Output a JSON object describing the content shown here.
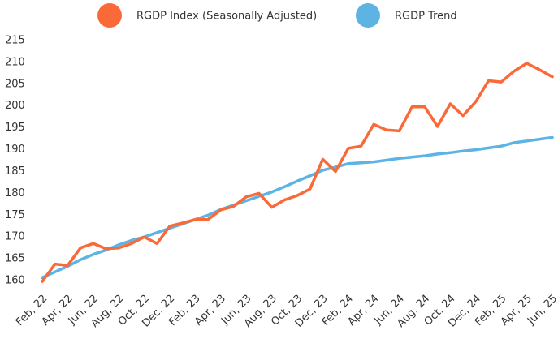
{
  "chart_data": {
    "type": "line",
    "categories": [
      "Feb, 22",
      null,
      "Apr, 22",
      null,
      "Jun, 22",
      null,
      "Aug, 22",
      null,
      "Oct, 22",
      null,
      "Dec, 22",
      null,
      "Feb, 23",
      null,
      "Apr, 23",
      null,
      "Jun, 23",
      null,
      "Aug, 23",
      null,
      "Oct, 23",
      null,
      "Dec, 23",
      null,
      "Feb, 24",
      null,
      "Apr, 24",
      null,
      "Jun, 24",
      null,
      "Aug, 24",
      null,
      "Oct, 24",
      null,
      "Dec, 24",
      null,
      "Feb, 25",
      null,
      "Apr, 25",
      null,
      "Jun, 25"
    ],
    "series": [
      {
        "name": "RGDP Index (Seasonally Adjusted)",
        "color": "#fa6a38",
        "values": [
          159.8,
          163.8,
          163.5,
          167.5,
          168.5,
          167.3,
          167.5,
          168.5,
          170,
          168.5,
          172.5,
          173.2,
          174,
          174,
          176.2,
          177,
          179.2,
          180,
          176.8,
          178.5,
          179.5,
          181,
          187.8,
          185,
          190.3,
          190.8,
          195.8,
          194.5,
          194.3,
          199.8,
          199.8,
          195.3,
          200.5,
          197.8,
          201,
          205.8,
          205.5,
          208,
          209.8,
          208.3,
          206.7
        ]
      },
      {
        "name": "RGDP Trend",
        "color": "#5cb3e4",
        "values": [
          160.7,
          162,
          163.3,
          164.8,
          166,
          167,
          168.2,
          169.2,
          170,
          171,
          172,
          173,
          174,
          175,
          176.3,
          177.3,
          178.3,
          179.3,
          180.3,
          181.5,
          182.8,
          184,
          185.3,
          186,
          186.8,
          187,
          187.2,
          187.6,
          188,
          188.3,
          188.6,
          189,
          189.3,
          189.7,
          190,
          190.4,
          190.8,
          191.6,
          192,
          192.4,
          192.8
        ]
      }
    ],
    "ylim": [
      158,
      216
    ],
    "yticks": [
      160,
      165,
      170,
      175,
      180,
      185,
      190,
      195,
      200,
      205,
      210,
      215
    ],
    "grid": false,
    "legend": "top"
  }
}
